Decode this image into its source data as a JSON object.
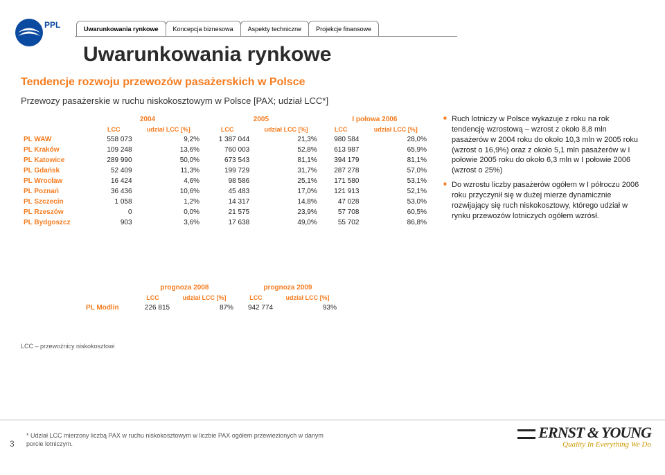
{
  "tabs": [
    {
      "label": "Uwarunkowania rynkowe",
      "active": true
    },
    {
      "label": "Koncepcja biznesowa",
      "active": false
    },
    {
      "label": "Aspekty techniczne",
      "active": false
    },
    {
      "label": "Projekcje finansowe",
      "active": false
    }
  ],
  "title": "Uwarunkowania rynkowe",
  "subtitle": "Tendencje rozwoju przewozów pasażerskich w Polsce",
  "subtitle2": "Przewozy pasażerskie w ruchu niskokosztowym w Polsce [PAX; udział LCC*]",
  "main_table": {
    "group_headers": [
      "2004",
      "2005",
      "I połowa 2006"
    ],
    "col_headers": [
      "LCC",
      "udział LCC [%]",
      "LCC",
      "udział LCC [%]",
      "LCC",
      "udział LCC [%]"
    ],
    "rows": [
      {
        "label": "PL WAW",
        "c": [
          "558 073",
          "9,2%",
          "1 387 044",
          "21,3%",
          "980 584",
          "28,0%"
        ]
      },
      {
        "label": "PL Kraków",
        "c": [
          "109 248",
          "13,6%",
          "760 003",
          "52,8%",
          "613 987",
          "65,9%"
        ]
      },
      {
        "label": "PL Katowice",
        "c": [
          "289 990",
          "50,0%",
          "673 543",
          "81,1%",
          "394 179",
          "81,1%"
        ]
      },
      {
        "label": "PL Gdańsk",
        "c": [
          "52 409",
          "11,3%",
          "199 729",
          "31,7%",
          "287 278",
          "57,0%"
        ]
      },
      {
        "label": "PL Wrocław",
        "c": [
          "16 424",
          "4,6%",
          "98 586",
          "25,1%",
          "171 580",
          "53,1%"
        ]
      },
      {
        "label": "PL Poznań",
        "c": [
          "36 436",
          "10,6%",
          "45 483",
          "17,0%",
          "121 913",
          "52,1%"
        ]
      },
      {
        "label": "PL Szczecin",
        "c": [
          "1 058",
          "1,2%",
          "14 317",
          "14,8%",
          "47 028",
          "53,0%"
        ]
      },
      {
        "label": "PL Rzeszów",
        "c": [
          "0",
          "0,0%",
          "21 575",
          "23,9%",
          "57 708",
          "60,5%"
        ]
      },
      {
        "label": "PL Bydgoszcz",
        "c": [
          "903",
          "3,6%",
          "17 638",
          "49,0%",
          "55 702",
          "86,8%"
        ]
      }
    ]
  },
  "forecast_table": {
    "group_headers": [
      "prognoza 2008",
      "prognoza 2009"
    ],
    "col_headers": [
      "LCC",
      "udział LCC [%]",
      "LCC",
      "udział LCC [%]"
    ],
    "rows": [
      {
        "label": "PL Modlin",
        "c": [
          "226 815",
          "87%",
          "942 774",
          "93%"
        ]
      }
    ]
  },
  "bullets": [
    "Ruch lotniczy w Polsce wykazuje z roku na rok tendencję wzrostową – wzrost z około 8,8 mln pasażerów w 2004 roku do około 10,3 mln w 2005 roku (wzrost o 16,9%) oraz z około 5,1 mln pasażerów w I połowie 2005 roku do około 6,3 mln w I połowie 2006 (wzrost o 25%)",
    "Do wzrostu liczby pasażerów ogółem w I półroczu 2006 roku przyczynił się w dużej mierze dynamicznie rozwijający się ruch niskokosztowy, którego udział w rynku przewozów lotniczych ogółem wzrósł."
  ],
  "footnote_lcc": "LCC – przewoźnicy niskokosztowi",
  "page_num": "3",
  "footnote": "* Udział LCC mierzony liczbą PAX w ruchu niskokosztowym w liczbie PAX ogółem przewiezionych w danym porcie lotniczym.",
  "ey": {
    "name": "ERNST & YOUNG",
    "tag": "Quality In Everything We Do"
  },
  "colors": {
    "accent": "#f57c1f",
    "logo_blue": "#0a4aa0"
  }
}
